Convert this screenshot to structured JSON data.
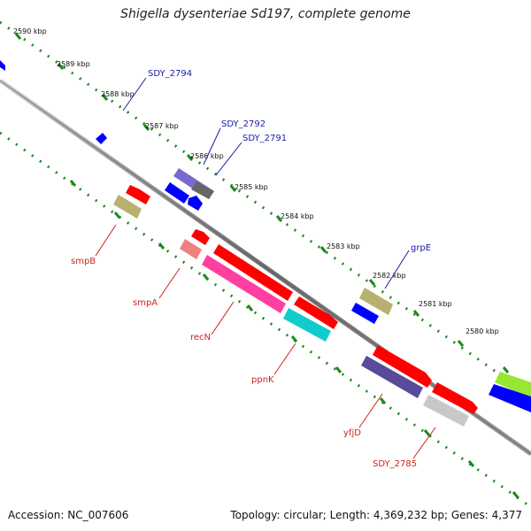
{
  "title": "Shigella dysenteriae Sd197, complete genome",
  "footer": {
    "accession": "Accession: NC_007606",
    "summary": "Topology: circular; Length: 4,369,232 bp; Genes: 4,377"
  },
  "ticks": [
    "2590 kbp",
    "2589 kbp",
    "2588 kbp",
    "2587 kbp",
    "2586 kbp",
    "2585 kbp",
    "2584 kbp",
    "2583 kbp",
    "2582 kbp",
    "2581 kbp",
    "2580 kbp"
  ],
  "gene_labels": {
    "sdy2794": "SDY_2794",
    "sdy2792": "SDY_2792",
    "sdy2791": "SDY_2791",
    "grpE": "grpE",
    "smpB": "smpB",
    "smpA": "smpA",
    "recN": "recN",
    "ppnK": "ppnK",
    "yfjD": "yfjD",
    "sdy2785": "SDY_2785"
  },
  "colors": {
    "backbone": "#8a8a8a",
    "dots": "#1a8a1a",
    "red": "#ff0000",
    "blue": "#0000ff",
    "olive": "#b8b070",
    "pink": "#ff3fa0",
    "salmon": "#f08080",
    "cyan": "#11cccc",
    "purple": "#5a4a9a",
    "lavender": "#8a7acc",
    "gray": "#707070",
    "lightgray": "#c8c8c8",
    "lime": "#99e633"
  }
}
